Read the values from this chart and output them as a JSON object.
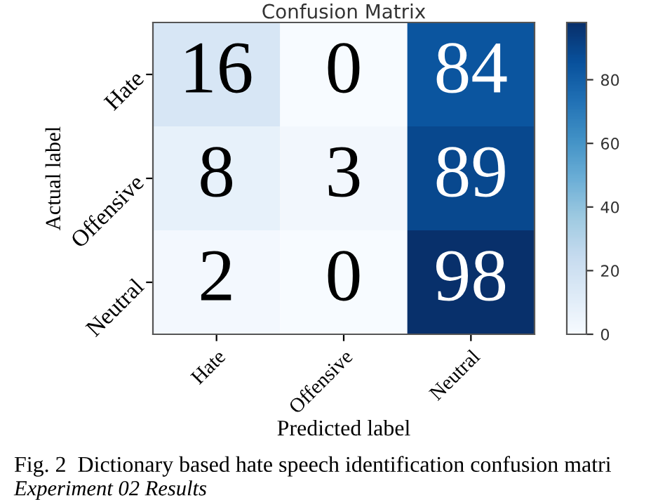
{
  "chart_data": {
    "type": "heatmap",
    "title": "Confusion Matrix",
    "xlabel": "Predicted label",
    "ylabel": "Actual label",
    "categories": [
      "Hate",
      "Offensive",
      "Neutral"
    ],
    "y_categories": [
      "Hate",
      "Offensive",
      "Neutral"
    ],
    "cells": [
      [
        16,
        0,
        84
      ],
      [
        8,
        3,
        89
      ],
      [
        2,
        0,
        98
      ]
    ],
    "clim": [
      0,
      98
    ],
    "cticks": [
      0,
      20,
      40,
      60,
      80
    ],
    "data_labels": true,
    "annotations": [
      "Fig. 2  Dictionary based hate speech identification confusion matri",
      "Experiment 02 Results"
    ]
  }
}
